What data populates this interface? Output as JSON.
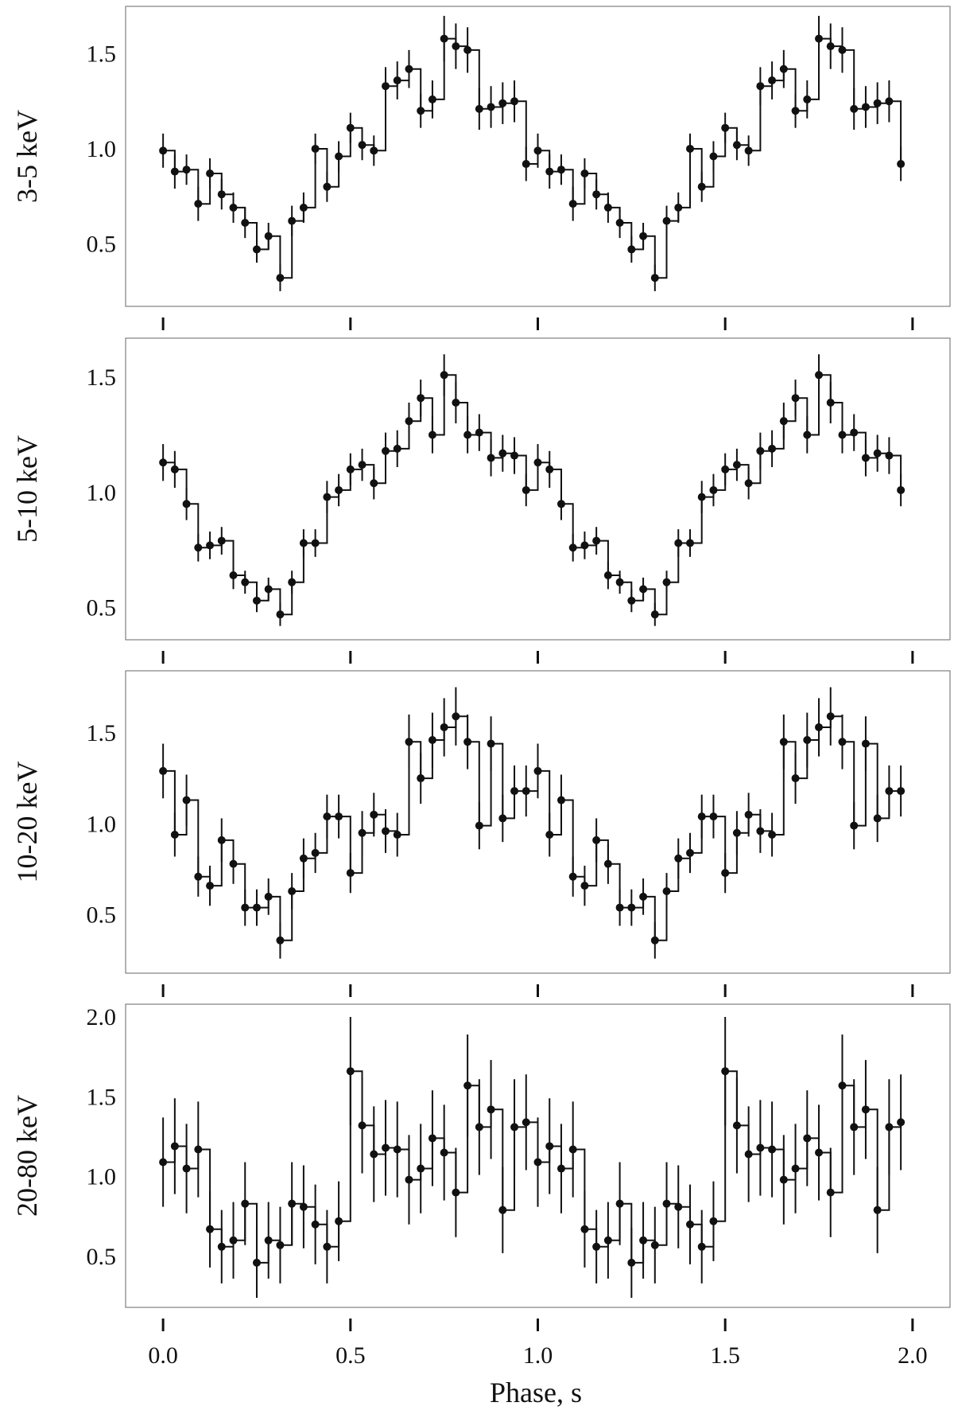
{
  "chart_data": {
    "type": "line",
    "xlabel": "Phase, s",
    "xlim": [
      -0.1,
      2.1
    ],
    "xticks": [
      0.0,
      0.5,
      1.0,
      1.5,
      2.0
    ],
    "xtick_labels": [
      "0.0",
      "0.5",
      "1.0",
      "1.5",
      "2.0"
    ],
    "grid": false,
    "bin_width": 0.03125,
    "phase": [
      0.0,
      0.03125,
      0.0625,
      0.09375,
      0.125,
      0.15625,
      0.1875,
      0.21875,
      0.25,
      0.28125,
      0.3125,
      0.34375,
      0.375,
      0.40625,
      0.4375,
      0.46875,
      0.5,
      0.53125,
      0.5625,
      0.59375,
      0.625,
      0.65625,
      0.6875,
      0.71875,
      0.75,
      0.78125,
      0.8125,
      0.84375,
      0.875,
      0.90625,
      0.9375,
      0.96875,
      1.0,
      1.03125,
      1.0625,
      1.09375,
      1.125,
      1.15625,
      1.1875,
      1.21875,
      1.25,
      1.28125,
      1.3125,
      1.34375,
      1.375,
      1.40625,
      1.4375,
      1.46875,
      1.5,
      1.53125,
      1.5625,
      1.59375,
      1.625,
      1.65625,
      1.6875,
      1.71875,
      1.75,
      1.78125,
      1.8125,
      1.84375,
      1.875,
      1.90625,
      1.9375,
      1.96875
    ],
    "panels": [
      {
        "ylabel": "3-5 keV",
        "ylim": [
          0.17,
          1.75
        ],
        "yticks": [
          0.5,
          1.0,
          1.5
        ],
        "ytick_labels": [
          "0.5",
          "1.0",
          "1.5"
        ],
        "values": [
          0.99,
          0.88,
          0.89,
          0.71,
          0.87,
          0.76,
          0.69,
          0.61,
          0.47,
          0.54,
          0.32,
          0.62,
          0.69,
          1.0,
          0.8,
          0.96,
          1.11,
          1.02,
          0.99,
          1.33,
          1.36,
          1.42,
          1.2,
          1.26,
          1.58,
          1.54,
          1.52,
          1.21,
          1.22,
          1.24,
          1.25,
          0.92
        ],
        "errors": [
          0.09,
          0.09,
          0.08,
          0.09,
          0.08,
          0.08,
          0.08,
          0.08,
          0.07,
          0.07,
          0.07,
          0.08,
          0.08,
          0.08,
          0.08,
          0.08,
          0.08,
          0.08,
          0.08,
          0.1,
          0.1,
          0.1,
          0.09,
          0.1,
          0.12,
          0.12,
          0.12,
          0.11,
          0.11,
          0.11,
          0.11,
          0.09
        ]
      },
      {
        "ylabel": "5-10 keV",
        "ylim": [
          0.36,
          1.67
        ],
        "yticks": [
          0.5,
          1.0,
          1.5
        ],
        "ytick_labels": [
          "0.5",
          "1.0",
          "1.5"
        ],
        "values": [
          1.13,
          1.1,
          0.95,
          0.76,
          0.77,
          0.79,
          0.64,
          0.61,
          0.53,
          0.58,
          0.47,
          0.61,
          0.78,
          0.78,
          0.98,
          1.01,
          1.1,
          1.12,
          1.04,
          1.18,
          1.19,
          1.31,
          1.41,
          1.25,
          1.51,
          1.39,
          1.25,
          1.26,
          1.15,
          1.17,
          1.16,
          1.01
        ],
        "errors": [
          0.08,
          0.08,
          0.07,
          0.06,
          0.06,
          0.06,
          0.06,
          0.05,
          0.05,
          0.05,
          0.05,
          0.05,
          0.06,
          0.06,
          0.07,
          0.07,
          0.07,
          0.07,
          0.07,
          0.08,
          0.08,
          0.08,
          0.08,
          0.08,
          0.09,
          0.09,
          0.08,
          0.08,
          0.08,
          0.08,
          0.08,
          0.07
        ]
      },
      {
        "ylabel": "10-20 keV",
        "ylim": [
          0.18,
          1.84
        ],
        "yticks": [
          0.5,
          1.0,
          1.5
        ],
        "ytick_labels": [
          "0.5",
          "1.0",
          "1.5"
        ],
        "values": [
          1.29,
          0.94,
          1.13,
          0.71,
          0.66,
          0.91,
          0.78,
          0.54,
          0.54,
          0.6,
          0.36,
          0.63,
          0.81,
          0.84,
          1.04,
          1.04,
          0.73,
          0.95,
          1.05,
          0.96,
          0.94,
          1.45,
          1.25,
          1.46,
          1.53,
          1.59,
          1.45,
          0.99,
          1.44,
          1.03,
          1.18,
          1.18
        ],
        "errors": [
          0.15,
          0.12,
          0.14,
          0.11,
          0.11,
          0.12,
          0.11,
          0.1,
          0.1,
          0.1,
          0.1,
          0.1,
          0.11,
          0.11,
          0.12,
          0.12,
          0.11,
          0.12,
          0.12,
          0.12,
          0.12,
          0.15,
          0.14,
          0.15,
          0.16,
          0.16,
          0.15,
          0.13,
          0.15,
          0.13,
          0.14,
          0.14
        ]
      },
      {
        "ylabel": "20-80 keV",
        "ylim": [
          0.18,
          2.08
        ],
        "yticks": [
          0.5,
          1.0,
          1.5,
          2.0
        ],
        "ytick_labels": [
          "0.5",
          "1.0",
          "1.5",
          "2.0"
        ],
        "values": [
          1.09,
          1.19,
          1.05,
          1.17,
          0.67,
          0.56,
          0.6,
          0.83,
          0.46,
          0.6,
          0.57,
          0.83,
          0.81,
          0.7,
          0.56,
          0.72,
          1.66,
          1.32,
          1.14,
          1.18,
          1.17,
          0.98,
          1.05,
          1.24,
          1.15,
          0.9,
          1.57,
          1.31,
          1.42,
          0.79,
          1.31,
          1.34
        ],
        "errors": [
          0.28,
          0.3,
          0.28,
          0.3,
          0.24,
          0.23,
          0.24,
          0.26,
          0.22,
          0.24,
          0.24,
          0.26,
          0.26,
          0.25,
          0.23,
          0.25,
          0.34,
          0.3,
          0.3,
          0.3,
          0.3,
          0.28,
          0.28,
          0.3,
          0.3,
          0.28,
          0.32,
          0.3,
          0.31,
          0.27,
          0.3,
          0.3
        ]
      }
    ]
  }
}
